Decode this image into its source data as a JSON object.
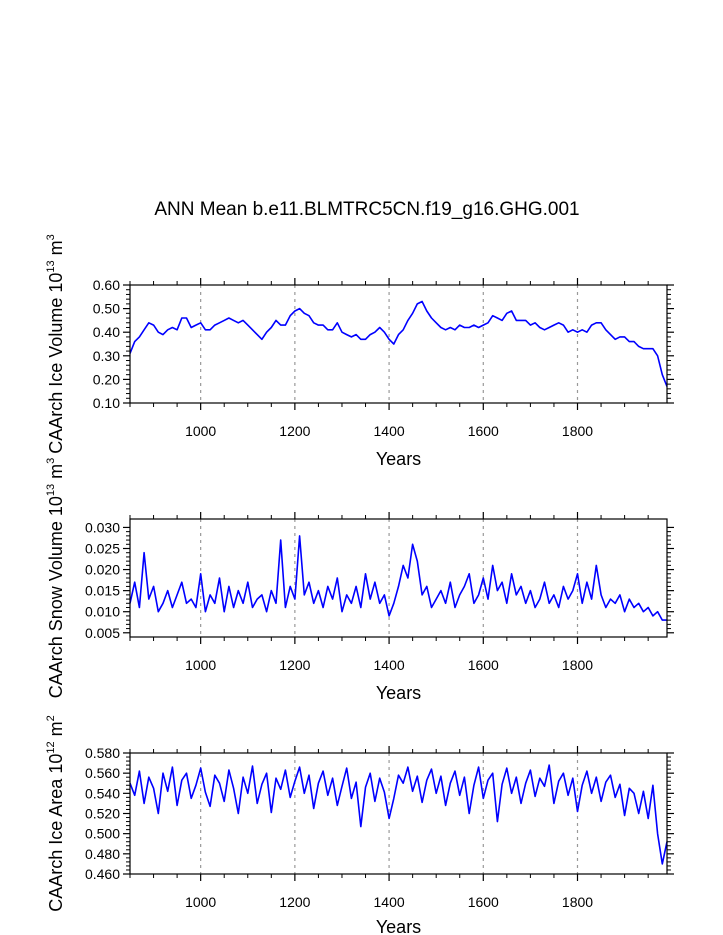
{
  "title": "ANN Mean b.e11.BLMTRC5CN.f19_g16.GHG.001",
  "line_color": "#0000ff",
  "grid_color": "#999999",
  "chart_data": [
    {
      "type": "line",
      "name": "ice-volume",
      "ylabel": "CAArch Ice Volume 10^13 m^3",
      "ylabel_parts": {
        "base": "CAArch Ice Volume 10",
        "exp1": "13",
        "mid": " m",
        "exp2": "3"
      },
      "xlabel": "Years",
      "xlim": [
        850,
        1990
      ],
      "ylim": [
        0.1,
        0.6
      ],
      "yticks": [
        0.1,
        0.2,
        0.3,
        0.4,
        0.5,
        0.6
      ],
      "ytick_labels": [
        "0.10",
        "0.20",
        "0.30",
        "0.40",
        "0.50",
        "0.60"
      ],
      "xticks": [
        1000,
        1200,
        1400,
        1600,
        1800
      ],
      "xtick_labels": [
        "1000",
        "1200",
        "1400",
        "1600",
        "1800"
      ],
      "x": [
        850,
        860,
        870,
        880,
        890,
        900,
        910,
        920,
        930,
        940,
        950,
        960,
        970,
        980,
        990,
        1000,
        1010,
        1020,
        1030,
        1040,
        1050,
        1060,
        1070,
        1080,
        1090,
        1100,
        1110,
        1120,
        1130,
        1140,
        1150,
        1160,
        1170,
        1180,
        1190,
        1200,
        1210,
        1220,
        1230,
        1240,
        1250,
        1260,
        1270,
        1280,
        1290,
        1300,
        1310,
        1320,
        1330,
        1340,
        1350,
        1360,
        1370,
        1380,
        1390,
        1400,
        1410,
        1420,
        1430,
        1440,
        1450,
        1460,
        1470,
        1480,
        1490,
        1500,
        1510,
        1520,
        1530,
        1540,
        1550,
        1560,
        1570,
        1580,
        1590,
        1600,
        1610,
        1620,
        1630,
        1640,
        1650,
        1660,
        1670,
        1680,
        1690,
        1700,
        1710,
        1720,
        1730,
        1740,
        1750,
        1760,
        1770,
        1780,
        1790,
        1800,
        1810,
        1820,
        1830,
        1840,
        1850,
        1860,
        1870,
        1880,
        1890,
        1900,
        1910,
        1920,
        1930,
        1940,
        1950,
        1960,
        1970,
        1980,
        1990
      ],
      "values": [
        0.31,
        0.36,
        0.38,
        0.41,
        0.44,
        0.43,
        0.4,
        0.39,
        0.41,
        0.42,
        0.41,
        0.46,
        0.46,
        0.42,
        0.43,
        0.44,
        0.41,
        0.41,
        0.43,
        0.44,
        0.45,
        0.46,
        0.45,
        0.44,
        0.45,
        0.43,
        0.41,
        0.39,
        0.37,
        0.4,
        0.42,
        0.45,
        0.43,
        0.43,
        0.47,
        0.49,
        0.5,
        0.48,
        0.47,
        0.44,
        0.43,
        0.43,
        0.41,
        0.41,
        0.44,
        0.4,
        0.39,
        0.38,
        0.39,
        0.37,
        0.37,
        0.39,
        0.4,
        0.42,
        0.4,
        0.37,
        0.35,
        0.39,
        0.41,
        0.45,
        0.48,
        0.52,
        0.53,
        0.49,
        0.46,
        0.44,
        0.42,
        0.41,
        0.42,
        0.41,
        0.43,
        0.42,
        0.42,
        0.43,
        0.42,
        0.43,
        0.44,
        0.47,
        0.46,
        0.45,
        0.48,
        0.49,
        0.45,
        0.45,
        0.45,
        0.43,
        0.44,
        0.42,
        0.41,
        0.42,
        0.43,
        0.44,
        0.43,
        0.4,
        0.41,
        0.4,
        0.41,
        0.4,
        0.43,
        0.44,
        0.44,
        0.41,
        0.39,
        0.37,
        0.38,
        0.38,
        0.36,
        0.36,
        0.34,
        0.33,
        0.33,
        0.33,
        0.3,
        0.22,
        0.17
      ]
    },
    {
      "type": "line",
      "name": "snow-volume",
      "ylabel": "CAArch Snow Volume 10^13 m^3",
      "ylabel_parts": {
        "base": "CAArch Snow Volume 10",
        "exp1": "13",
        "mid": " m",
        "exp2": "3"
      },
      "xlabel": "Years",
      "xlim": [
        850,
        1990
      ],
      "ylim": [
        0.004,
        0.032
      ],
      "yticks": [
        0.005,
        0.01,
        0.015,
        0.02,
        0.025,
        0.03
      ],
      "ytick_labels": [
        "0.005",
        "0.010",
        "0.015",
        "0.020",
        "0.025",
        "0.030"
      ],
      "xticks": [
        1000,
        1200,
        1400,
        1600,
        1800
      ],
      "xtick_labels": [
        "1000",
        "1200",
        "1400",
        "1600",
        "1800"
      ],
      "x": [
        850,
        860,
        870,
        880,
        890,
        900,
        910,
        920,
        930,
        940,
        950,
        960,
        970,
        980,
        990,
        1000,
        1010,
        1020,
        1030,
        1040,
        1050,
        1060,
        1070,
        1080,
        1090,
        1100,
        1110,
        1120,
        1130,
        1140,
        1150,
        1160,
        1170,
        1180,
        1190,
        1200,
        1210,
        1220,
        1230,
        1240,
        1250,
        1260,
        1270,
        1280,
        1290,
        1300,
        1310,
        1320,
        1330,
        1340,
        1350,
        1360,
        1370,
        1380,
        1390,
        1400,
        1410,
        1420,
        1430,
        1440,
        1450,
        1460,
        1470,
        1480,
        1490,
        1500,
        1510,
        1520,
        1530,
        1540,
        1550,
        1560,
        1570,
        1580,
        1590,
        1600,
        1610,
        1620,
        1630,
        1640,
        1650,
        1660,
        1670,
        1680,
        1690,
        1700,
        1710,
        1720,
        1730,
        1740,
        1750,
        1760,
        1770,
        1780,
        1790,
        1800,
        1810,
        1820,
        1830,
        1840,
        1850,
        1860,
        1870,
        1880,
        1890,
        1900,
        1910,
        1920,
        1930,
        1940,
        1950,
        1960,
        1970,
        1980,
        1990
      ],
      "values": [
        0.012,
        0.017,
        0.011,
        0.024,
        0.013,
        0.016,
        0.01,
        0.012,
        0.015,
        0.011,
        0.014,
        0.017,
        0.012,
        0.013,
        0.011,
        0.019,
        0.01,
        0.014,
        0.012,
        0.018,
        0.01,
        0.016,
        0.011,
        0.015,
        0.012,
        0.017,
        0.011,
        0.013,
        0.014,
        0.01,
        0.015,
        0.012,
        0.027,
        0.011,
        0.016,
        0.013,
        0.028,
        0.014,
        0.017,
        0.012,
        0.015,
        0.011,
        0.016,
        0.013,
        0.018,
        0.01,
        0.014,
        0.012,
        0.016,
        0.011,
        0.019,
        0.013,
        0.017,
        0.012,
        0.014,
        0.009,
        0.012,
        0.016,
        0.021,
        0.018,
        0.026,
        0.022,
        0.014,
        0.016,
        0.011,
        0.013,
        0.015,
        0.012,
        0.017,
        0.011,
        0.014,
        0.016,
        0.019,
        0.012,
        0.014,
        0.018,
        0.013,
        0.021,
        0.015,
        0.017,
        0.012,
        0.019,
        0.014,
        0.016,
        0.012,
        0.015,
        0.011,
        0.013,
        0.017,
        0.012,
        0.014,
        0.011,
        0.016,
        0.013,
        0.015,
        0.019,
        0.012,
        0.017,
        0.013,
        0.021,
        0.014,
        0.011,
        0.013,
        0.012,
        0.014,
        0.01,
        0.013,
        0.011,
        0.012,
        0.01,
        0.011,
        0.009,
        0.01,
        0.008,
        0.008
      ]
    },
    {
      "type": "line",
      "name": "ice-area",
      "ylabel": "CAArch Ice Area 10^12 m^2",
      "ylabel_parts": {
        "base": "CAArch Ice Area 10",
        "exp1": "12",
        "mid": " m",
        "exp2": "2"
      },
      "xlabel": "Years",
      "xlim": [
        850,
        1990
      ],
      "ylim": [
        0.46,
        0.58
      ],
      "yticks": [
        0.46,
        0.48,
        0.5,
        0.52,
        0.54,
        0.56,
        0.58
      ],
      "ytick_labels": [
        "0.460",
        "0.480",
        "0.500",
        "0.520",
        "0.540",
        "0.560",
        "0.580"
      ],
      "xticks": [
        1000,
        1200,
        1400,
        1600,
        1800
      ],
      "xtick_labels": [
        "1000",
        "1200",
        "1400",
        "1600",
        "1800"
      ],
      "x": [
        850,
        860,
        870,
        880,
        890,
        900,
        910,
        920,
        930,
        940,
        950,
        960,
        970,
        980,
        990,
        1000,
        1010,
        1020,
        1030,
        1040,
        1050,
        1060,
        1070,
        1080,
        1090,
        1100,
        1110,
        1120,
        1130,
        1140,
        1150,
        1160,
        1170,
        1180,
        1190,
        1200,
        1210,
        1220,
        1230,
        1240,
        1250,
        1260,
        1270,
        1280,
        1290,
        1300,
        1310,
        1320,
        1330,
        1340,
        1350,
        1360,
        1370,
        1380,
        1390,
        1400,
        1410,
        1420,
        1430,
        1440,
        1450,
        1460,
        1470,
        1480,
        1490,
        1500,
        1510,
        1520,
        1530,
        1540,
        1550,
        1560,
        1570,
        1580,
        1590,
        1600,
        1610,
        1620,
        1630,
        1640,
        1650,
        1660,
        1670,
        1680,
        1690,
        1700,
        1710,
        1720,
        1730,
        1740,
        1750,
        1760,
        1770,
        1780,
        1790,
        1800,
        1810,
        1820,
        1830,
        1840,
        1850,
        1860,
        1870,
        1880,
        1890,
        1900,
        1910,
        1920,
        1930,
        1940,
        1950,
        1960,
        1970,
        1980,
        1990
      ],
      "values": [
        0.55,
        0.538,
        0.562,
        0.53,
        0.556,
        0.545,
        0.52,
        0.56,
        0.542,
        0.566,
        0.528,
        0.553,
        0.56,
        0.535,
        0.548,
        0.565,
        0.541,
        0.527,
        0.558,
        0.55,
        0.532,
        0.563,
        0.545,
        0.52,
        0.556,
        0.54,
        0.567,
        0.53,
        0.549,
        0.56,
        0.521,
        0.555,
        0.544,
        0.563,
        0.536,
        0.552,
        0.566,
        0.54,
        0.558,
        0.525,
        0.55,
        0.562,
        0.538,
        0.555,
        0.528,
        0.547,
        0.565,
        0.535,
        0.551,
        0.507,
        0.546,
        0.56,
        0.532,
        0.555,
        0.541,
        0.515,
        0.535,
        0.558,
        0.55,
        0.566,
        0.542,
        0.557,
        0.531,
        0.553,
        0.564,
        0.54,
        0.557,
        0.528,
        0.55,
        0.562,
        0.538,
        0.556,
        0.52,
        0.548,
        0.566,
        0.535,
        0.553,
        0.56,
        0.512,
        0.549,
        0.565,
        0.54,
        0.556,
        0.53,
        0.55,
        0.563,
        0.537,
        0.555,
        0.547,
        0.568,
        0.53,
        0.552,
        0.56,
        0.538,
        0.555,
        0.522,
        0.548,
        0.562,
        0.54,
        0.556,
        0.532,
        0.551,
        0.558,
        0.536,
        0.549,
        0.518,
        0.545,
        0.54,
        0.52,
        0.542,
        0.515,
        0.548,
        0.5,
        0.47,
        0.492
      ]
    }
  ]
}
